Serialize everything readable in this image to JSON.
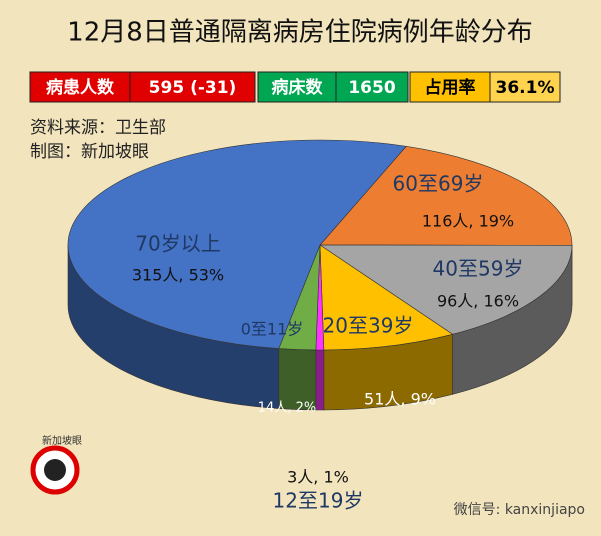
{
  "chart_data": {
    "type": "pie",
    "title": "12月8日普通隔离病房住院病例年龄分布",
    "stats": [
      "病患人数",
      "595 (-31)",
      "病床数",
      "1650",
      "占用率",
      "36.1%"
    ],
    "source": "资料来源：卫生部",
    "credit": "制图：新加坡眼",
    "logo": "新加坡眼",
    "watermark": "微信号: kanxinjiapo",
    "categories": [
      "60至69岁",
      "40至59岁",
      "20至39岁",
      "12至19岁",
      "0至11岁",
      "70岁以上"
    ],
    "values": [
      116,
      96,
      51,
      3,
      14,
      315
    ],
    "value_labels": [
      "116人, 19%",
      "96人, 16%",
      "51人, 9%",
      "3人, 1%",
      "14人, 2%",
      "315人, 53%"
    ],
    "colors": [
      "#ed7d31",
      "#a5a5a5",
      "#ffc000",
      "#ff33ff",
      "#70ad47",
      "#4472c4"
    ]
  }
}
